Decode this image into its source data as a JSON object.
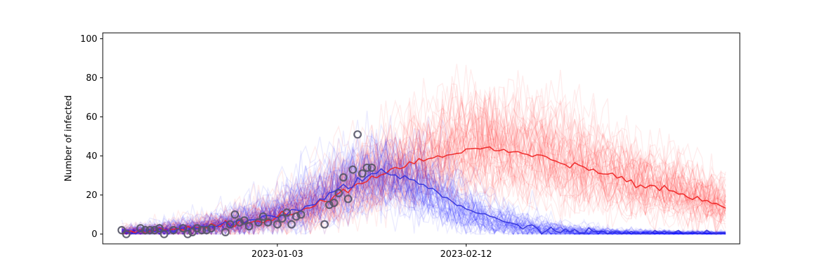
{
  "chart_data": {
    "type": "line",
    "title": "",
    "xlabel": "",
    "ylabel": "Number of infected",
    "x_tick_labels": [
      "2023-01-03",
      "2023-02-12"
    ],
    "x_ticks": [
      "2023-01-03",
      "2023-02-12"
    ],
    "xlim": [
      "2022-11-27",
      "2023-04-11"
    ],
    "y_ticks": [
      0,
      20,
      40,
      60,
      80,
      100
    ],
    "ylim": [
      -5,
      103
    ],
    "grid": false,
    "colors": {
      "red_series": "#ff0000",
      "blue_series": "#0000ff",
      "observed": "#555566"
    },
    "series": [
      {
        "color": "red",
        "x": [
          "2022-12-01",
          "2022-12-06",
          "2022-12-11",
          "2022-12-16",
          "2022-12-21",
          "2022-12-26",
          "2022-12-31",
          "2023-01-05",
          "2023-01-10",
          "2023-01-15",
          "2023-01-20",
          "2023-01-25",
          "2023-01-30",
          "2023-02-04",
          "2023-02-09",
          "2023-02-14",
          "2023-02-19",
          "2023-02-24",
          "2023-03-01",
          "2023-03-06",
          "2023-03-11",
          "2023-03-16",
          "2023-03-21",
          "2023-03-26",
          "2023-03-31",
          "2023-04-05",
          "2023-04-08"
        ],
        "values": [
          1,
          1.5,
          2,
          3,
          4,
          5.5,
          7.5,
          10,
          14,
          19,
          25,
          31,
          35,
          38,
          42,
          44,
          43,
          41,
          39,
          36,
          33,
          29,
          26,
          23,
          20,
          16,
          13
        ]
      },
      {
        "color": "blue",
        "x": [
          "2022-12-01",
          "2022-12-06",
          "2022-12-11",
          "2022-12-16",
          "2022-12-21",
          "2022-12-26",
          "2022-12-31",
          "2023-01-05",
          "2023-01-10",
          "2023-01-15",
          "2023-01-20",
          "2023-01-25",
          "2023-01-30",
          "2023-02-04",
          "2023-02-09",
          "2023-02-14",
          "2023-02-19",
          "2023-02-24",
          "2023-03-01",
          "2023-03-06",
          "2023-03-11",
          "2023-03-16",
          "2023-03-21",
          "2023-03-26",
          "2023-03-31",
          "2023-04-05",
          "2023-04-08"
        ],
        "values": [
          1,
          1.5,
          2,
          3,
          4,
          5.5,
          7.5,
          10.5,
          15,
          21,
          27,
          32,
          29,
          24,
          17,
          11,
          6.5,
          4,
          2.5,
          1.5,
          1,
          0.7,
          0.5,
          0.4,
          0.3,
          0.3,
          0.3
        ]
      }
    ],
    "observed": {
      "x": [
        "2022-12-01",
        "2022-12-02",
        "2022-12-05",
        "2022-12-06",
        "2022-12-07",
        "2022-12-08",
        "2022-12-09",
        "2022-12-10",
        "2022-12-12",
        "2022-12-14",
        "2022-12-15",
        "2022-12-16",
        "2022-12-17",
        "2022-12-18",
        "2022-12-19",
        "2022-12-20",
        "2022-12-23",
        "2022-12-24",
        "2022-12-25",
        "2022-12-26",
        "2022-12-27",
        "2022-12-28",
        "2022-12-30",
        "2022-12-31",
        "2023-01-01",
        "2023-01-03",
        "2023-01-04",
        "2023-01-05",
        "2023-01-06",
        "2023-01-07",
        "2023-01-08",
        "2023-01-13",
        "2023-01-14",
        "2023-01-15",
        "2023-01-16",
        "2023-01-17",
        "2023-01-18",
        "2023-01-19",
        "2023-01-20",
        "2023-01-21",
        "2023-01-22",
        "2023-01-23"
      ],
      "values": [
        2,
        0,
        3,
        2,
        2,
        2,
        3,
        0,
        2,
        3,
        0,
        1,
        3,
        2,
        2,
        3,
        1,
        5,
        10,
        6,
        7,
        4,
        6,
        9,
        6,
        5,
        8,
        11,
        5,
        9,
        10,
        5,
        15,
        16,
        21,
        29,
        18,
        33,
        51,
        31,
        34,
        34
      ]
    }
  }
}
